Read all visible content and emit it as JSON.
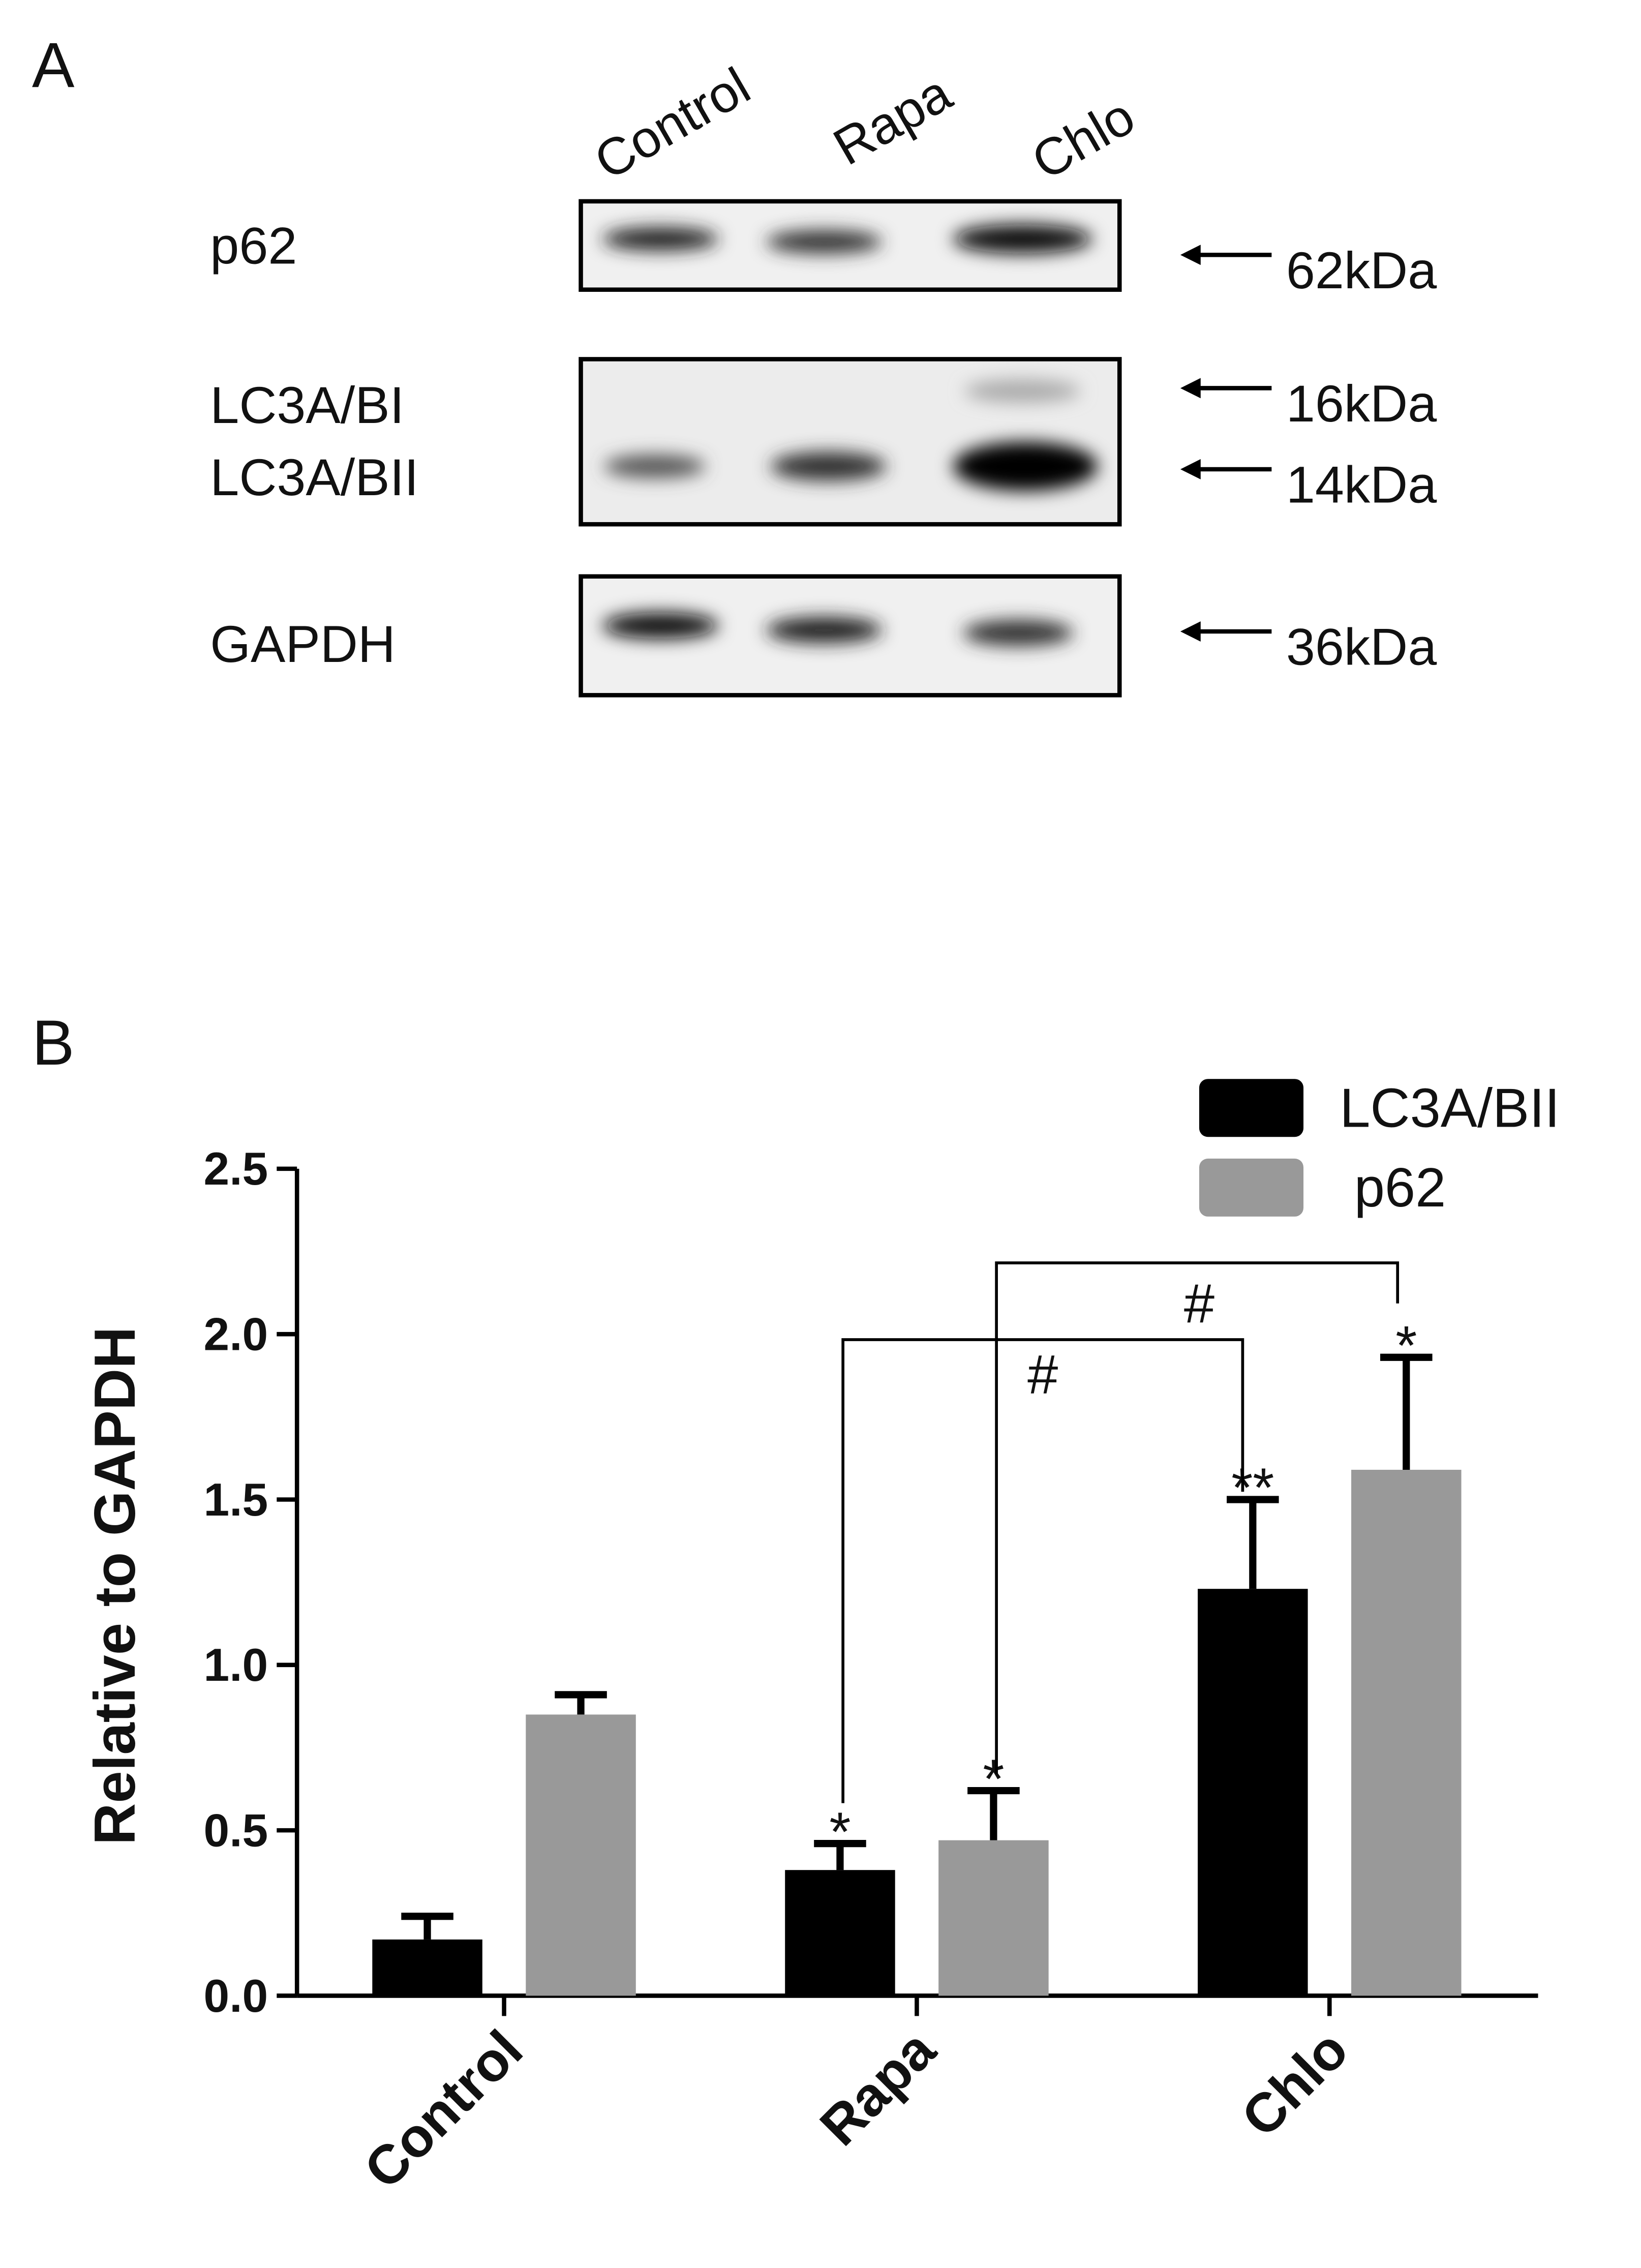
{
  "panel_a": {
    "label": "A",
    "lanes": [
      "Control",
      "Rapa",
      "Chlo"
    ],
    "blots": [
      {
        "labels": [
          "p62"
        ],
        "sizes": [
          "62kDa"
        ]
      },
      {
        "labels": [
          "LC3A/BI",
          "LC3A/BII"
        ],
        "sizes": [
          "16kDa",
          "14kDa"
        ]
      },
      {
        "labels": [
          "GAPDH"
        ],
        "sizes": [
          "36kDa"
        ]
      }
    ]
  },
  "chart_data": {
    "type": "bar",
    "panel_label": "B",
    "ylabel": "Relative to GAPDH",
    "categories": [
      "Control",
      "Rapa",
      "Chlo"
    ],
    "series": [
      {
        "name": "LC3A/BII",
        "color": "#000000",
        "values": [
          0.17,
          0.38,
          1.23
        ],
        "errors": [
          0.07,
          0.08,
          0.27
        ],
        "significance": [
          null,
          "*",
          "**"
        ]
      },
      {
        "name": "p62",
        "color": "#999999",
        "values": [
          0.85,
          0.47,
          1.59
        ],
        "errors": [
          0.06,
          0.15,
          0.34
        ],
        "significance": [
          null,
          "*",
          "*"
        ]
      }
    ],
    "brackets": [
      "#",
      "#"
    ],
    "ylim": [
      0,
      2.5
    ],
    "yticks": [
      {
        "value": 0,
        "label": "0.0"
      },
      {
        "value": 0.5,
        "label": "0.5"
      },
      {
        "value": 1,
        "label": "1.0"
      },
      {
        "value": 1.5,
        "label": "1.5"
      },
      {
        "value": 2,
        "label": "2.0"
      },
      {
        "value": 2.5,
        "label": "2.5"
      }
    ],
    "legend": "top-right"
  }
}
